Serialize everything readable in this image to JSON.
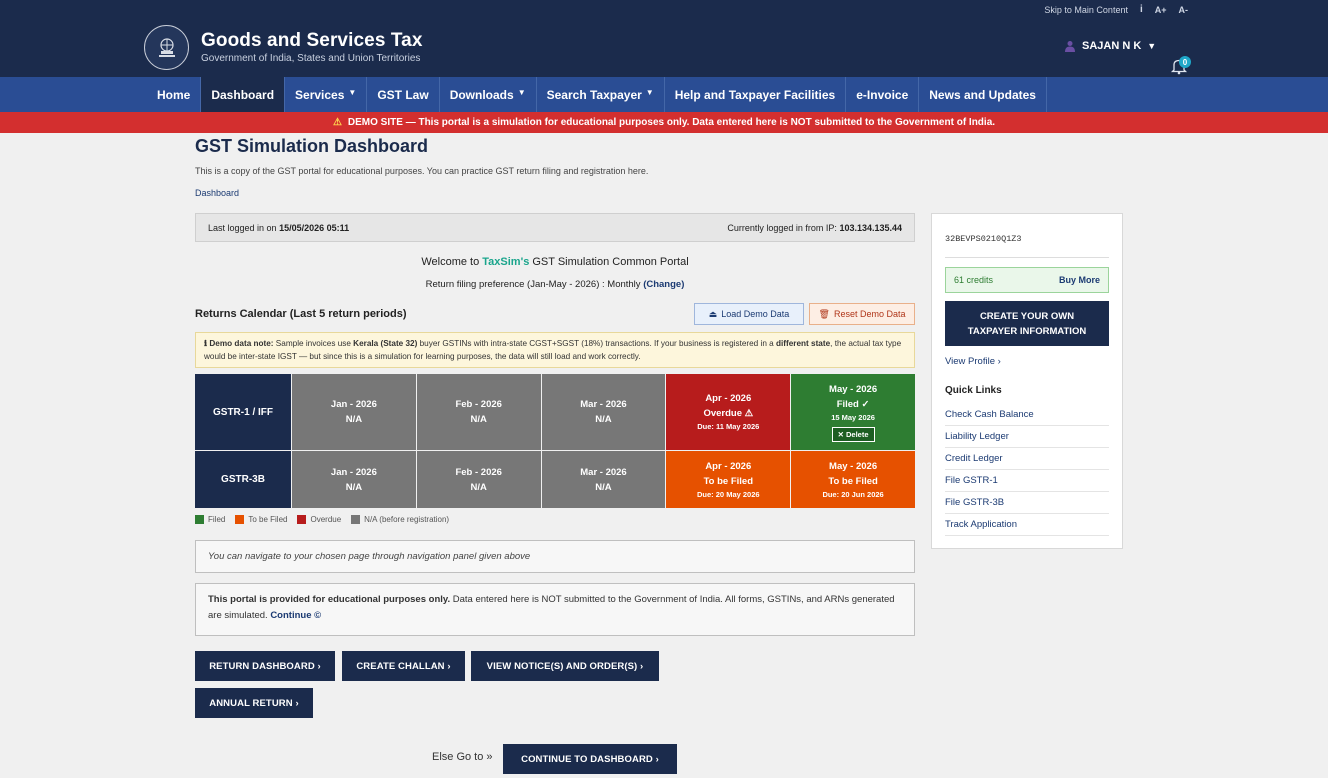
{
  "topstrip": {
    "skip": "Skip to Main Content",
    "info": "i",
    "font_plus": "A+",
    "font_minus": "A-"
  },
  "header": {
    "title": "Goods and Services Tax",
    "subtitle": "Government of India, States and Union Territories",
    "user": "SAJAN N K",
    "notifications": "0"
  },
  "nav": [
    {
      "label": "Home"
    },
    {
      "label": "Dashboard"
    },
    {
      "label": "Services"
    },
    {
      "label": "GST Law"
    },
    {
      "label": "Downloads"
    },
    {
      "label": "Search Taxpayer"
    },
    {
      "label": "Help and Taxpayer Facilities"
    },
    {
      "label": "e-Invoice"
    },
    {
      "label": "News and Updates"
    }
  ],
  "banner": "DEMO SITE — This portal is a simulation for educational purposes only. Data entered here is NOT submitted to the Government of India.",
  "page": {
    "title": "GST Simulation Dashboard",
    "description": "This is a copy of the GST portal for educational purposes. You can practice GST return filing and registration here.",
    "breadcrumb": "Dashboard"
  },
  "login": {
    "last_label": "Last logged in on ",
    "last_value": "15/05/2026 05:11",
    "ip_label": "Currently logged in from IP: ",
    "ip_value": "103.134.135.44"
  },
  "welcome": {
    "prefix": "Welcome to ",
    "brand": "TaxSim's",
    "suffix": " GST Simulation Common Portal",
    "pref_text": "Return filing preference (Jan-May - 2026) : Monthly ",
    "change": "(Change)"
  },
  "calendar": {
    "title": "Returns Calendar (Last 5 return periods)",
    "load_btn": "Load Demo Data",
    "reset_btn": "Reset Demo Data",
    "note_label": "ℹ Demo data note:",
    "note_text_1": " Sample invoices use ",
    "note_bold_1": "Kerala (State 32)",
    "note_text_2": " buyer GSTINs with intra-state CGST+SGST (18%) transactions. If your business is registered in a ",
    "note_bold_2": "different state",
    "note_text_3": ", the actual tax type would be inter-state IGST — but since this is a simulation for learning purposes, the data will still load and work correctly.",
    "gstr1": {
      "label": "GSTR-1 / IFF",
      "cells": [
        {
          "period": "Jan - 2026",
          "status": "N/A",
          "due": "",
          "kind": "na"
        },
        {
          "period": "Feb - 2026",
          "status": "N/A",
          "due": "",
          "kind": "na"
        },
        {
          "period": "Mar - 2026",
          "status": "N/A",
          "due": "",
          "kind": "na"
        },
        {
          "period": "Apr - 2026",
          "status": "Overdue ⚠",
          "due": "Due: 11 May 2026",
          "kind": "overdue"
        },
        {
          "period": "May - 2026",
          "status": "Filed ✓",
          "due": "15 May 2026",
          "kind": "filed",
          "action": "✕ Delete"
        }
      ]
    },
    "gstr3b": {
      "label": "GSTR-3B",
      "cells": [
        {
          "period": "Jan - 2026",
          "status": "N/A",
          "due": "",
          "kind": "na"
        },
        {
          "period": "Feb - 2026",
          "status": "N/A",
          "due": "",
          "kind": "na"
        },
        {
          "period": "Mar - 2026",
          "status": "N/A",
          "due": "",
          "kind": "na"
        },
        {
          "period": "Apr - 2026",
          "status": "To be Filed",
          "due": "Due: 20 May 2026",
          "kind": "tofile"
        },
        {
          "period": "May - 2026",
          "status": "To be Filed",
          "due": "Due: 20 Jun 2026",
          "kind": "tofile"
        }
      ]
    },
    "legend": [
      {
        "label": "Filed",
        "color": "#2e7d32"
      },
      {
        "label": "To be Filed",
        "color": "#e65100"
      },
      {
        "label": "Overdue",
        "color": "#b71c1c"
      },
      {
        "label": "N/A (before registration)",
        "color": "#777777"
      }
    ]
  },
  "navhint": "You can navigate to your chosen page through navigation panel given above",
  "notice": {
    "bold": "This portal is provided for educational purposes only.",
    "text": " Data entered here is NOT submitted to the Government of India. All forms, GSTINs, and ARNs generated are simulated. ",
    "link": "Continue ©"
  },
  "actions": {
    "return_dashboard": "RETURN DASHBOARD ›",
    "create_challan": "CREATE CHALLAN ›",
    "view_notices": "VIEW NOTICE(S) AND ORDER(S) ›",
    "annual_return": "ANNUAL RETURN ›",
    "else_go": "Else Go to »",
    "continue": "CONTINUE TO DASHBOARD ›"
  },
  "sidebar": {
    "gstin": "32BEVPS0210Q1Z3",
    "credits": "61 credits",
    "buy_more": "Buy More",
    "create_line1": "CREATE YOUR OWN",
    "create_line2": "TAXPAYER INFORMATION",
    "view_profile": "View Profile ›",
    "quick_links_title": "Quick Links",
    "quick_links": [
      "Check Cash Balance",
      "Liability Ledger",
      "Credit Ledger",
      "File GSTR-1",
      "File GSTR-3B",
      "Track Application"
    ]
  },
  "colors": {
    "header_bg": "#1b2b4c",
    "nav_bg": "#2a4d94",
    "banner_bg": "#d32f2f"
  }
}
